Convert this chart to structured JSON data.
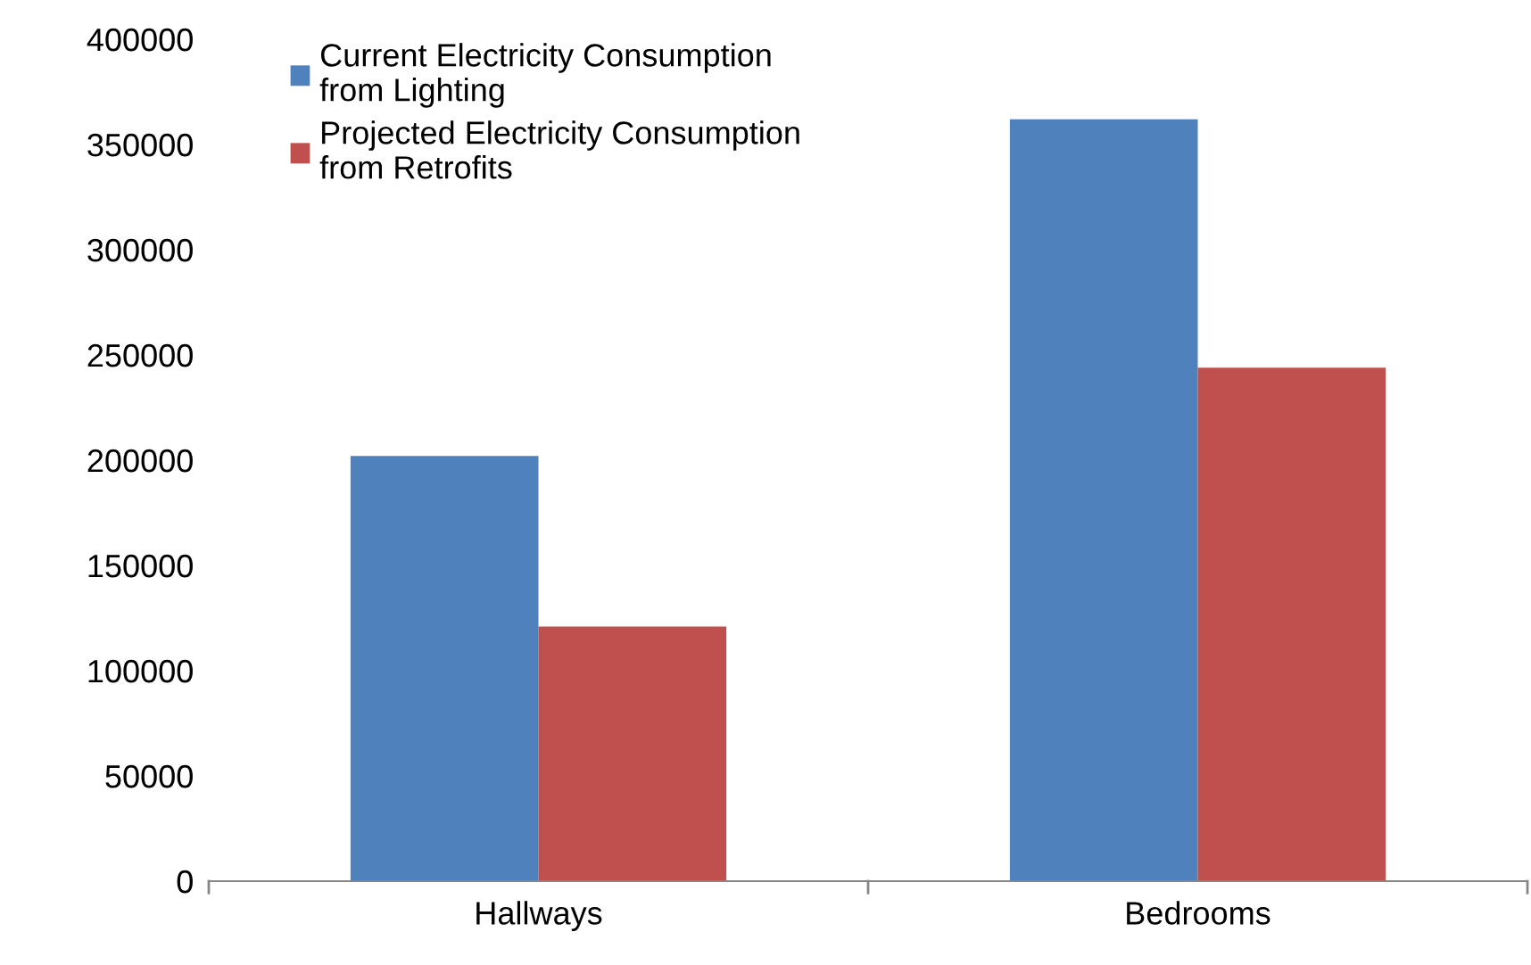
{
  "chart_data": {
    "type": "bar",
    "categories": [
      "Hallways",
      "Bedrooms"
    ],
    "series": [
      {
        "name": "Current Electricity Consumption\nfrom Lighting",
        "color": "#4f81bd",
        "values": [
          202000,
          362000
        ]
      },
      {
        "name": "Projected Electricity Consumption\nfrom Retrofits",
        "color": "#c0504d",
        "values": [
          121000,
          244000
        ]
      }
    ],
    "ylim": [
      0,
      400000
    ],
    "yticks": [
      0,
      50000,
      100000,
      150000,
      200000,
      250000,
      300000,
      350000,
      400000
    ],
    "grid": false,
    "legend": "top left"
  }
}
